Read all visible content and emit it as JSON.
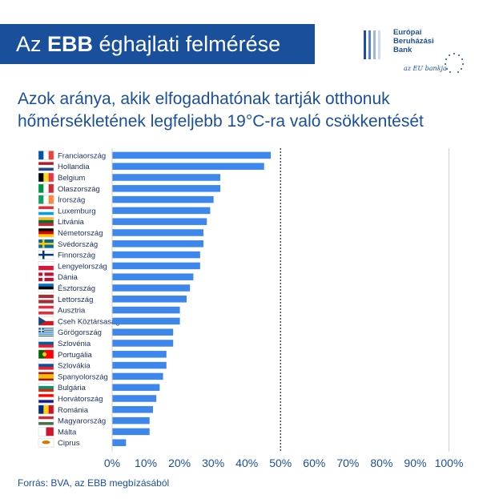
{
  "banner": {
    "prefix": "Az ",
    "bold": "EBB",
    "suffix": " éghajlati felmérése"
  },
  "logo": {
    "lines": [
      "Európai",
      "Beruházási",
      "Bank"
    ],
    "tagline": "az EU bankja"
  },
  "title_line1": "Azok aránya, akik elfogadhatónak tartják otthonuk",
  "title_line2": "hőmérsékletének legfeljebb 19°C-ra való csökkentését",
  "source": "Forrás: BVA, az EBB megbízásából",
  "colors": {
    "brand": "#1a4f9c",
    "bar": "#3d86eb"
  },
  "chart_data": {
    "type": "bar",
    "orientation": "horizontal",
    "title": "Azok aránya, akik elfogadhatónak tartják otthonuk hőmérsékletének legfeljebb 19°C-ra való csökkentését",
    "categories": [
      "Franciaország",
      "Hollandia",
      "Belgium",
      "Olaszország",
      "Írország",
      "Luxemburg",
      "Litvánia",
      "Németország",
      "Svédország",
      "Finnország",
      "Lengyelország",
      "Dánia",
      "Észtország",
      "Lettország",
      "Ausztria",
      "Cseh Köztársaság",
      "Görögország",
      "Szlovénia",
      "Portugália",
      "Szlovákia",
      "Spanyolország",
      "Bulgária",
      "Horvátország",
      "Románia",
      "Magyarország",
      "Málta",
      "Ciprus"
    ],
    "values": [
      47,
      45,
      32,
      32,
      30,
      29,
      28,
      27,
      27,
      26,
      26,
      24,
      23,
      22,
      20,
      20,
      18,
      18,
      16,
      16,
      15,
      14,
      13,
      12,
      11,
      11,
      4
    ],
    "x_ticks": [
      "0%",
      "10%",
      "20%",
      "30%",
      "40%",
      "50%",
      "60%",
      "70%",
      "80%",
      "90%",
      "100%"
    ],
    "xlim": [
      0,
      100
    ],
    "reference_line": 50,
    "grid": false,
    "flags": [
      "fr",
      "nl",
      "be",
      "it",
      "ie",
      "lu",
      "lt",
      "de",
      "se",
      "fi",
      "pl",
      "dk",
      "ee",
      "lv",
      "at",
      "cz",
      "gr",
      "si",
      "pt",
      "sk",
      "es",
      "bg",
      "hr",
      "ro",
      "hu",
      "mt",
      "cy"
    ]
  }
}
